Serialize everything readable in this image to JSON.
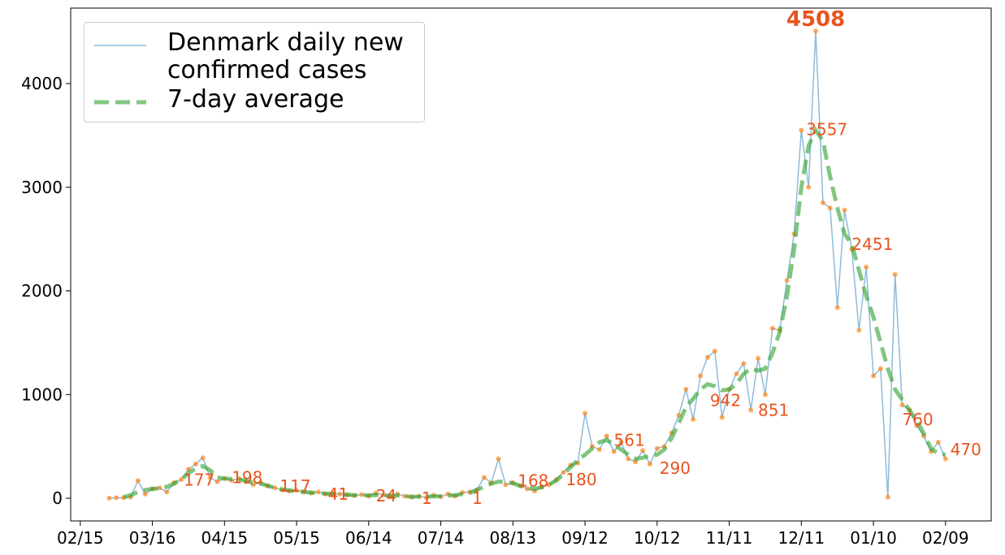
{
  "chart_data": {
    "type": "line",
    "x": [
      "02/27",
      "03/01",
      "03/04",
      "03/07",
      "03/10",
      "03/13",
      "03/16",
      "03/19",
      "03/22",
      "03/25",
      "03/28",
      "03/31",
      "04/03",
      "04/06",
      "04/09",
      "04/12",
      "04/15",
      "04/18",
      "04/21",
      "04/24",
      "04/27",
      "04/30",
      "05/03",
      "05/06",
      "05/09",
      "05/12",
      "05/15",
      "05/18",
      "05/21",
      "05/24",
      "05/27",
      "05/30",
      "06/02",
      "06/05",
      "06/08",
      "06/11",
      "06/14",
      "06/17",
      "06/20",
      "06/23",
      "06/26",
      "06/29",
      "07/02",
      "07/05",
      "07/08",
      "07/11",
      "07/14",
      "07/17",
      "07/20",
      "07/23",
      "07/26",
      "07/29",
      "08/01",
      "08/04",
      "08/07",
      "08/10",
      "08/13",
      "08/16",
      "08/19",
      "08/22",
      "08/25",
      "08/28",
      "08/31",
      "09/03",
      "09/06",
      "09/09",
      "09/12",
      "09/15",
      "09/18",
      "09/21",
      "09/24",
      "09/27",
      "09/30",
      "10/03",
      "10/06",
      "10/09",
      "10/12",
      "10/15",
      "10/18",
      "10/21",
      "10/24",
      "10/27",
      "10/30",
      "11/02",
      "11/05",
      "11/08",
      "11/11",
      "11/14",
      "11/17",
      "11/20",
      "11/23",
      "11/26",
      "11/29",
      "12/02",
      "12/05",
      "12/08",
      "12/11",
      "12/14",
      "12/17",
      "12/20",
      "12/23",
      "12/26",
      "12/29",
      "01/01",
      "01/04",
      "01/07",
      "01/10",
      "01/13",
      "01/16",
      "01/19",
      "01/22",
      "01/25",
      "01/28",
      "01/31",
      "02/03",
      "02/06",
      "02/09"
    ],
    "series": [
      {
        "name": "Denmark daily new confirmed cases",
        "color": "#1f77b4",
        "marker_color": "#ff7f0e",
        "values": [
          1,
          5,
          5,
          10,
          170,
          40,
          90,
          100,
          60,
          150,
          180,
          280,
          330,
          390,
          200,
          160,
          190,
          170,
          190,
          160,
          130,
          150,
          120,
          100,
          80,
          70,
          75,
          60,
          50,
          60,
          40,
          45,
          40,
          30,
          25,
          35,
          20,
          50,
          30,
          15,
          40,
          20,
          10,
          20,
          5,
          30,
          15,
          40,
          20,
          55,
          60,
          80,
          200,
          150,
          380,
          130,
          150,
          120,
          90,
          70,
          110,
          130,
          180,
          250,
          320,
          340,
          820,
          500,
          470,
          600,
          450,
          540,
          380,
          350,
          460,
          330,
          480,
          500,
          630,
          800,
          1050,
          760,
          1180,
          1360,
          1420,
          780,
          1050,
          1200,
          1300,
          850,
          1350,
          1000,
          1640,
          1620,
          2100,
          2550,
          3550,
          3000,
          4508,
          2850,
          2800,
          1840,
          2780,
          2400,
          1620,
          2230,
          1180,
          1250,
          10,
          2160,
          900,
          850,
          700,
          600,
          450,
          540,
          380
        ]
      },
      {
        "name": "7-day average",
        "color": "#2ca02c",
        "dashed": true,
        "values": [
          null,
          null,
          10,
          30,
          60,
          80,
          90,
          95,
          110,
          140,
          180,
          240,
          290,
          310,
          270,
          200,
          190,
          185,
          180,
          170,
          150,
          140,
          120,
          100,
          85,
          75,
          70,
          62,
          55,
          50,
          45,
          42,
          40,
          35,
          30,
          30,
          28,
          30,
          30,
          25,
          25,
          20,
          15,
          15,
          15,
          18,
          20,
          25,
          30,
          40,
          50,
          80,
          110,
          140,
          160,
          160,
          145,
          120,
          100,
          90,
          105,
          130,
          170,
          230,
          300,
          370,
          420,
          480,
          540,
          560,
          520,
          470,
          420,
          380,
          390,
          410,
          420,
          470,
          580,
          720,
          880,
          960,
          1050,
          1100,
          1080,
          1040,
          1050,
          1100,
          1200,
          1250,
          1230,
          1250,
          1400,
          1600,
          1950,
          2400,
          3000,
          3400,
          3550,
          3450,
          3100,
          2800,
          2550,
          2450,
          2200,
          1950,
          1750,
          1500,
          1250,
          1050,
          950,
          850,
          750,
          620,
          480,
          430,
          420
        ]
      }
    ],
    "annotations": [
      {
        "x": "03/29",
        "value": 177
      },
      {
        "x": "04/18",
        "value": 198
      },
      {
        "x": "05/08",
        "value": 117
      },
      {
        "x": "05/28",
        "value": 41
      },
      {
        "x": "06/17",
        "value": 24
      },
      {
        "x": "07/06",
        "value": 1
      },
      {
        "x": "07/27",
        "value": 1
      },
      {
        "x": "08/15",
        "value": 168
      },
      {
        "x": "09/04",
        "value": 180
      },
      {
        "x": "09/24",
        "value": 561
      },
      {
        "x": "10/13",
        "value": 290
      },
      {
        "x": "11/03",
        "value": 942
      },
      {
        "x": "11/23",
        "value": 851
      },
      {
        "x": "12/13",
        "value": 3557
      },
      {
        "x": "01/01",
        "value": 2451
      },
      {
        "x": "01/22",
        "value": 760
      },
      {
        "x": "02/11",
        "value": 470
      }
    ],
    "annotation_color": "#e8541c",
    "max_annotation": {
      "x": "12/17",
      "value": 4508
    },
    "xlim": [
      "02/11",
      "02/28"
    ],
    "xticks": [
      "02/15",
      "03/16",
      "04/15",
      "05/15",
      "06/14",
      "07/14",
      "08/13",
      "09/12",
      "10/12",
      "11/11",
      "12/11",
      "01/10",
      "02/09"
    ],
    "ylim": [
      -219,
      4728
    ],
    "yticks": [
      0,
      1000,
      2000,
      3000,
      4000
    ],
    "grid": false,
    "legend": "upper left"
  }
}
